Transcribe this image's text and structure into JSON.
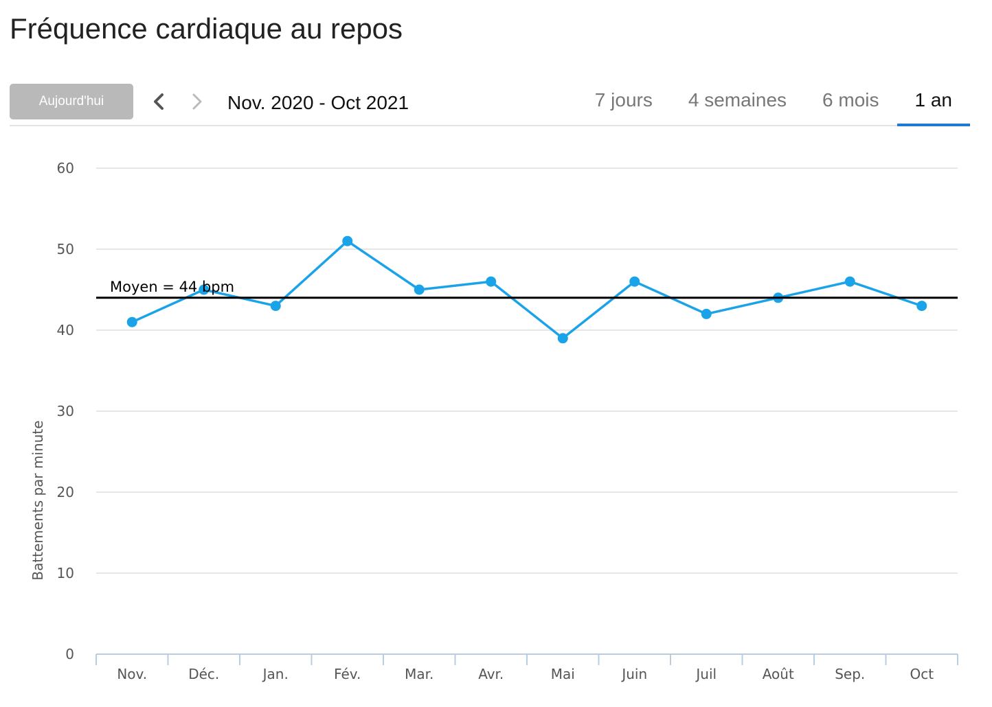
{
  "header": {
    "title": "Fréquence cardiaque au repos"
  },
  "toolbar": {
    "today_label": "Aujourd'hui",
    "prev_icon": "chevron-left-icon",
    "next_icon": "chevron-right-icon",
    "date_range": "Nov. 2020 - Oct 2021",
    "tabs": [
      {
        "label": "7 jours",
        "active": false
      },
      {
        "label": "4 semaines",
        "active": false
      },
      {
        "label": "6 mois",
        "active": false
      },
      {
        "label": "1 an",
        "active": true
      }
    ]
  },
  "colors": {
    "series": "#1aa3e8",
    "average_line": "#000000",
    "grid": "#dddddd",
    "active_tab": "#1f78d1",
    "today_button": "#b9b9b9"
  },
  "chart_data": {
    "type": "line",
    "title": "",
    "xlabel": "",
    "ylabel": "Battements par minute",
    "categories": [
      "Nov.",
      "Déc.",
      "Jan.",
      "Fév.",
      "Mar.",
      "Avr.",
      "Mai",
      "Juin",
      "Juil",
      "Août",
      "Sep.",
      "Oct"
    ],
    "series": [
      {
        "values": [
          41,
          45,
          43,
          51,
          45,
          46,
          39,
          46,
          42,
          44,
          46,
          43
        ]
      }
    ],
    "ylim": [
      0,
      60
    ],
    "yticks": [
      "0",
      "10",
      "20",
      "30",
      "40",
      "50",
      "60"
    ],
    "grid": true,
    "average": {
      "value": 44,
      "label": "Moyen = 44 bpm"
    }
  }
}
